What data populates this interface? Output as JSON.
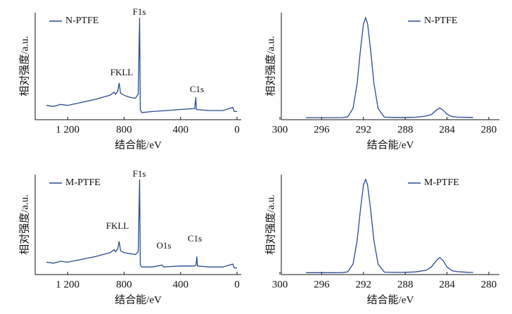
{
  "chart_data": [
    {
      "type": "line",
      "ylabel": "相对强度/a.u.",
      "xlabel": "结合能/eV",
      "legend": "upper left",
      "x": [
        1350,
        1300,
        1250,
        1200,
        1100,
        1000,
        900,
        870,
        860,
        845,
        835,
        825,
        800,
        760,
        720,
        700,
        690,
        685,
        675,
        600,
        500,
        400,
        300,
        292,
        288,
        200,
        100,
        30,
        20,
        0
      ],
      "series": [
        {
          "name": "N-PTFE",
          "color": "#2b4a8f",
          "values": [
            14,
            13,
            15,
            14,
            17,
            20,
            24,
            27,
            25,
            28,
            36,
            26,
            24,
            22,
            21,
            25,
            100,
            10,
            7,
            8,
            9,
            10,
            11,
            22,
            10,
            9,
            9,
            12,
            8,
            8
          ]
        }
      ],
      "xlim": [
        1400,
        0
      ],
      "xticks": [
        {
          "value": 1200,
          "label": "1 200"
        },
        800,
        400,
        0
      ],
      "ylim": [
        0,
        105
      ],
      "annotations": [
        "FKLL",
        "F1s",
        "C1s"
      ]
    },
    {
      "type": "line",
      "ylabel": "相对强度/a.u.",
      "xlabel": "结合能/eV",
      "legend": "upper right",
      "x": [
        297.5,
        296,
        295,
        294,
        293.5,
        293,
        292.6,
        292.3,
        292.0,
        291.8,
        291.6,
        291.3,
        291.0,
        290.6,
        290,
        289,
        288,
        287,
        286,
        285.5,
        285.0,
        284.7,
        284.4,
        284.0,
        283.5,
        283,
        282,
        281.5
      ],
      "series": [
        {
          "name": "N-PTFE",
          "color": "#2b4a8f",
          "values": [
            2,
            2,
            2,
            2.1,
            2.8,
            11,
            36,
            67,
            94,
            100,
            94,
            67,
            36,
            11,
            2.5,
            2.2,
            2.2,
            2.4,
            3.5,
            5,
            9.5,
            11.5,
            9.5,
            5.4,
            3,
            2.5,
            2.3,
            2.3
          ]
        }
      ],
      "xlim": [
        300,
        280
      ],
      "xticks": [
        300,
        296,
        292,
        288,
        284,
        280
      ],
      "ylim": [
        0,
        105
      ]
    },
    {
      "type": "line",
      "ylabel": "相对强度/a.u.",
      "xlabel": "结合能/eV",
      "legend": "upper left",
      "x": [
        1350,
        1300,
        1250,
        1200,
        1100,
        1000,
        900,
        870,
        860,
        845,
        835,
        825,
        800,
        760,
        720,
        700,
        690,
        685,
        675,
        600,
        531,
        520,
        400,
        300,
        290,
        285,
        280,
        200,
        100,
        30,
        20,
        0
      ],
      "series": [
        {
          "name": "M-PTFE",
          "color": "#2b4a8f",
          "values": [
            13,
            12,
            14,
            13,
            16,
            19,
            23,
            26,
            24,
            27,
            35,
            25,
            23,
            22,
            21,
            24,
            100,
            10,
            8,
            8,
            10,
            8,
            9,
            9,
            10,
            19,
            9,
            8,
            8,
            11,
            7,
            7
          ]
        }
      ],
      "xlim": [
        1400,
        0
      ],
      "xticks": [
        {
          "value": 1200,
          "label": "1 200"
        },
        800,
        400,
        0
      ],
      "ylim": [
        0,
        105
      ],
      "annotations": [
        "FKLL",
        "F1s",
        "O1s",
        "C1s"
      ]
    },
    {
      "type": "line",
      "ylabel": "相对强度/a.u.",
      "xlabel": "结合能/eV",
      "legend": "upper right",
      "x": [
        297.5,
        296,
        295,
        294,
        293.5,
        293,
        292.6,
        292.3,
        292.0,
        291.8,
        291.6,
        291.3,
        291.0,
        290.6,
        290,
        289,
        288,
        287,
        286,
        285.5,
        285.0,
        284.7,
        284.4,
        284.0,
        283.5,
        283,
        282,
        281.5
      ],
      "series": [
        {
          "name": "M-PTFE",
          "color": "#2b4a8f",
          "values": [
            2,
            2,
            2,
            2.1,
            2.8,
            11,
            36,
            67,
            94,
            100,
            94,
            67,
            36,
            11,
            2.6,
            2.3,
            2.4,
            2.8,
            4.5,
            8,
            15,
            18,
            15,
            8,
            4,
            3,
            2.4,
            2.3
          ]
        }
      ],
      "xlim": [
        300,
        280
      ],
      "xticks": [
        300,
        296,
        292,
        288,
        284,
        280
      ],
      "ylim": [
        0,
        105
      ]
    }
  ]
}
